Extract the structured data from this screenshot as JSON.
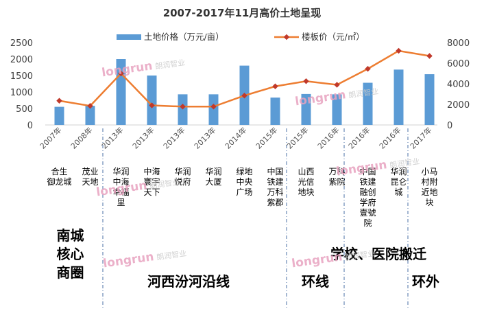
{
  "chart_data": {
    "type": "bar",
    "title": "2007-2017年11月高价土地呈现",
    "categories": [
      "2007年",
      "2008年",
      "2013年",
      "2013年",
      "2013年",
      "2013年",
      "2014年",
      "2015年",
      "2015年",
      "2016年",
      "2016年",
      "2016年",
      "2017年"
    ],
    "series": [
      {
        "name": "土地价格（万元/亩）",
        "type": "bar",
        "axis": "left",
        "color": "#5b9bd5",
        "values": [
          550,
          580,
          2000,
          1500,
          930,
          930,
          1800,
          830,
          940,
          930,
          1280,
          1680,
          1540
        ]
      },
      {
        "name": "楼板价（元/㎡）",
        "type": "line",
        "axis": "right",
        "color": "#ed7d31",
        "values": [
          2350,
          1850,
          5000,
          1900,
          1780,
          1780,
          2850,
          3750,
          4250,
          3900,
          5450,
          7200,
          6700
        ]
      }
    ],
    "y_left": {
      "min": 0,
      "max": 2500,
      "ticks": [
        0,
        500,
        1000,
        1500,
        2000,
        2500
      ]
    },
    "y_right": {
      "min": 0,
      "max": 8000,
      "ticks": [
        0,
        2000,
        4000,
        6000,
        8000
      ]
    },
    "grid": false,
    "legend_position": "top"
  },
  "projects": [
    "合生\n御龙城",
    "茂业\n天地",
    "华润\n中海\n幸福\n里",
    "中海\n寰宇\n天下",
    "华润\n悦府",
    "华润\n大厦",
    "绿地\n中央\n广场",
    "中国\n铁建\n万科\n紫郡",
    "山西\n光信\n地块",
    "万科\n紫院",
    "中国\n铁建\n融创\n学府\n壹號\n院",
    "华润\n昆仑\n城",
    "小马\n村附\n近地\n块"
  ],
  "regions": {
    "south": "南城\n核心\n商圈",
    "river": "河西汾河沿线",
    "ring": "环线",
    "school": "学校、医院搬迁",
    "outer": "环外"
  },
  "watermark": {
    "brand": "longrun",
    "cn": "朗润智业"
  }
}
